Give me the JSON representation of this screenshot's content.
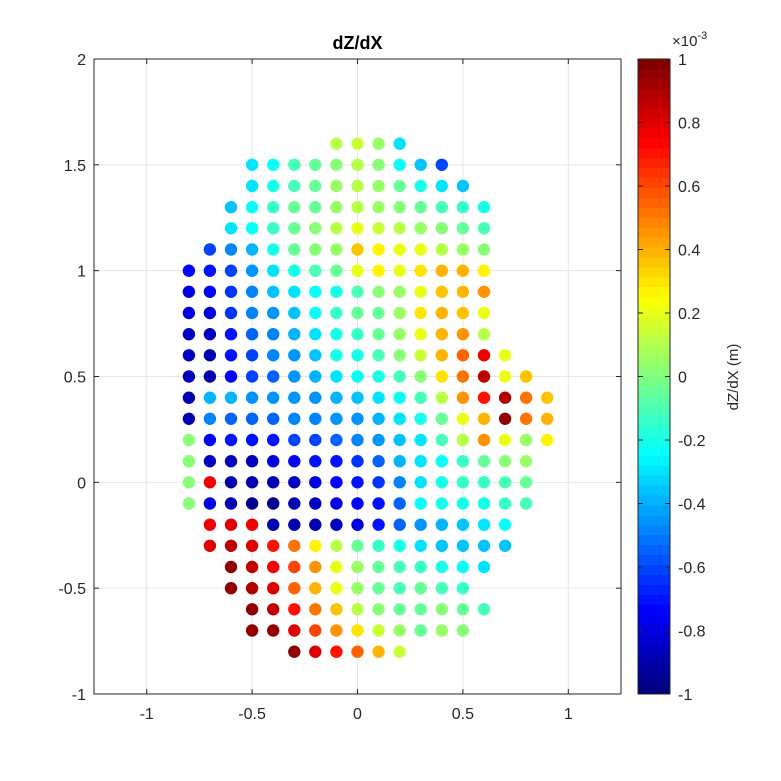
{
  "chart_data": {
    "type": "scatter",
    "title": "dZ/dX",
    "xlabel": "",
    "ylabel": "",
    "xlim": [
      -1.25,
      1.25
    ],
    "ylim": [
      -1,
      2
    ],
    "xticks": [
      -1,
      -0.5,
      0,
      0.5,
      1
    ],
    "xtick_labels": [
      "-1",
      "-0.5",
      "0",
      "0.5",
      "1"
    ],
    "yticks": [
      -1,
      -0.5,
      0,
      0.5,
      1,
      1.5,
      2
    ],
    "ytick_labels": [
      "-1",
      "-0.5",
      "0",
      "0.5",
      "1",
      "1.5",
      "2"
    ],
    "grid": true,
    "marker": "filled-circle",
    "colormap": "jet",
    "colorbar": {
      "label": "dZ/dX (m)",
      "exponent_label": "×10",
      "exponent_power": "-3",
      "limits": [
        -1,
        1
      ],
      "ticks": [
        1,
        0.8,
        0.6,
        0.4,
        0.2,
        0,
        -0.2,
        -0.4,
        -0.6,
        -0.8,
        -1
      ],
      "tick_labels": [
        "1",
        "0.8",
        "0.6",
        "0.4",
        "0.2",
        "0",
        "-0.2",
        "-0.4",
        "-0.6",
        "-0.8",
        "-1"
      ]
    },
    "value_units": "×10^-3 m",
    "rows": [
      {
        "y": 1.6,
        "x_start": -0.1,
        "values": [
          0.1,
          0.15,
          0.05,
          -0.3
        ]
      },
      {
        "y": 1.5,
        "x_start": -0.5,
        "values": [
          -0.3,
          -0.25,
          -0.1,
          -0.05,
          0,
          0.1,
          0,
          -0.25,
          -0.35,
          -0.6
        ]
      },
      {
        "y": 1.4,
        "x_start": -0.5,
        "values": [
          -0.3,
          -0.2,
          -0.1,
          -0.05,
          0.05,
          0.1,
          0.05,
          -0.05,
          -0.2,
          -0.3,
          -0.35
        ]
      },
      {
        "y": 1.3,
        "x_start": -0.6,
        "values": [
          -0.35,
          -0.25,
          -0.15,
          -0.05,
          -0.05,
          0.05,
          0.1,
          0.05,
          0,
          -0.05,
          -0.1,
          -0.15,
          -0.2
        ]
      },
      {
        "y": 1.2,
        "x_start": -0.6,
        "values": [
          -0.3,
          -0.25,
          -0.15,
          -0.05,
          0,
          0.1,
          0.2,
          0.15,
          0.1,
          0.05,
          0,
          -0.05,
          -0.1
        ]
      },
      {
        "y": 1.1,
        "x_start": -0.7,
        "values": [
          -0.6,
          -0.5,
          -0.4,
          -0.2,
          -0.05,
          0,
          0.05,
          0.35,
          0.25,
          0.2,
          0.2,
          0.1,
          0.05,
          0
        ]
      },
      {
        "y": 1.0,
        "x_start": -0.8,
        "values": [
          -0.75,
          -0.7,
          -0.6,
          -0.45,
          -0.3,
          -0.2,
          -0.1,
          -0.05,
          0.2,
          0.25,
          0.2,
          0.3,
          0.4,
          0.4,
          0.25
        ]
      },
      {
        "y": 0.9,
        "x_start": -0.8,
        "values": [
          -0.8,
          -0.75,
          -0.65,
          -0.5,
          -0.35,
          -0.3,
          -0.25,
          -0.2,
          -0.1,
          0,
          0.05,
          0.2,
          0.35,
          0.4,
          0.45
        ]
      },
      {
        "y": 0.8,
        "x_start": -0.8,
        "values": [
          -0.8,
          -0.8,
          -0.65,
          -0.5,
          -0.45,
          -0.35,
          -0.25,
          -0.15,
          -0.05,
          -0.05,
          0.05,
          0.3,
          0.4,
          0.35,
          0.2
        ]
      },
      {
        "y": 0.7,
        "x_start": -0.8,
        "values": [
          -0.85,
          -0.85,
          -0.7,
          -0.55,
          -0.5,
          -0.4,
          -0.3,
          -0.2,
          -0.15,
          -0.05,
          0.05,
          0.2,
          0.4,
          0.45,
          0.1
        ]
      },
      {
        "y": 0.6,
        "x_start": -0.8,
        "values": [
          -0.85,
          -0.9,
          -0.7,
          -0.6,
          -0.5,
          -0.45,
          -0.35,
          -0.2,
          -0.2,
          -0.1,
          0,
          0.15,
          0.4,
          0.55,
          0.75,
          0.2
        ]
      },
      {
        "y": 0.5,
        "x_start": -0.8,
        "values": [
          -0.85,
          -0.9,
          -0.75,
          -0.6,
          -0.55,
          -0.45,
          -0.4,
          -0.3,
          -0.25,
          -0.2,
          -0.1,
          0,
          0.3,
          0.5,
          0.85,
          0.2,
          0.35
        ]
      },
      {
        "y": 0.4,
        "x_start": -0.8,
        "values": [
          -0.9,
          -0.4,
          -0.4,
          -0.45,
          -0.45,
          -0.45,
          -0.45,
          -0.4,
          -0.35,
          -0.3,
          -0.25,
          -0.1,
          0.1,
          0.45,
          0.7,
          0.9,
          0.5,
          0.35
        ]
      },
      {
        "y": 0.3,
        "x_start": -0.8,
        "values": [
          -0.9,
          -0.5,
          -0.55,
          -0.55,
          -0.55,
          -0.5,
          -0.5,
          -0.45,
          -0.45,
          -0.4,
          -0.3,
          -0.2,
          -0.05,
          0.2,
          0.4,
          0.95,
          0.5,
          0.4
        ]
      },
      {
        "y": 0.2,
        "x_start": -0.8,
        "values": [
          0,
          -0.75,
          -0.7,
          -0.7,
          -0.7,
          -0.6,
          -0.6,
          -0.55,
          -0.5,
          -0.45,
          -0.35,
          -0.3,
          -0.1,
          0.1,
          0.45,
          0.2,
          0.05,
          0.25
        ]
      },
      {
        "y": 0.1,
        "x_start": -0.8,
        "values": [
          0,
          -0.85,
          -0.85,
          -0.85,
          -0.8,
          -0.75,
          -0.7,
          -0.7,
          -0.65,
          -0.55,
          -0.4,
          -0.3,
          -0.25,
          -0.15,
          -0.05,
          0,
          0.05
        ]
      },
      {
        "y": 0.0,
        "x_start": -0.8,
        "values": [
          0,
          0.75,
          -0.9,
          -0.9,
          -0.9,
          -0.85,
          -0.8,
          -0.75,
          -0.7,
          -0.65,
          -0.5,
          -0.3,
          -0.2,
          -0.15,
          -0.15,
          -0.1,
          -0.05
        ]
      },
      {
        "y": -0.1,
        "x_start": -0.8,
        "values": [
          0,
          -0.8,
          -0.9,
          -0.95,
          -0.95,
          -0.9,
          -0.85,
          -0.8,
          -0.75,
          -0.7,
          -0.55,
          -0.25,
          -0.2,
          -0.2,
          -0.2,
          -0.15,
          -0.1
        ]
      },
      {
        "y": -0.2,
        "x_start": -0.7,
        "values": [
          0.75,
          0.8,
          0.75,
          -0.9,
          -0.9,
          -0.9,
          -0.85,
          -0.8,
          -0.7,
          -0.55,
          -0.45,
          -0.4,
          -0.35,
          -0.3,
          -0.25
        ]
      },
      {
        "y": -0.3,
        "x_start": -0.7,
        "values": [
          0.8,
          0.85,
          0.8,
          0.7,
          0.5,
          0.25,
          0.1,
          -0.05,
          -0.15,
          -0.2,
          -0.3,
          -0.35,
          -0.35,
          -0.35,
          -0.35
        ]
      },
      {
        "y": -0.4,
        "x_start": -0.6,
        "values": [
          0.95,
          0.85,
          0.75,
          0.6,
          0.45,
          0.2,
          0.05,
          -0.05,
          -0.1,
          -0.15,
          -0.2,
          -0.25,
          -0.3
        ]
      },
      {
        "y": -0.5,
        "x_start": -0.6,
        "values": [
          0.95,
          0.9,
          0.8,
          0.55,
          0.4,
          0.2,
          0.05,
          -0.05,
          -0.1,
          -0.05,
          -0.1,
          -0.15
        ]
      },
      {
        "y": -0.6,
        "x_start": -0.5,
        "values": [
          0.95,
          0.85,
          0.7,
          0.5,
          0.35,
          0.1,
          0,
          -0.05,
          -0.05,
          0,
          -0.05,
          -0.1
        ]
      },
      {
        "y": -0.7,
        "x_start": -0.5,
        "values": [
          0.95,
          0.95,
          0.8,
          0.6,
          0.45,
          0.3,
          0.15,
          0.05,
          -0.05,
          0.05,
          0
        ]
      },
      {
        "y": -0.8,
        "x_start": -0.3,
        "values": [
          0.95,
          0.8,
          0.7,
          0.55,
          0.4,
          0.15
        ]
      }
    ]
  }
}
